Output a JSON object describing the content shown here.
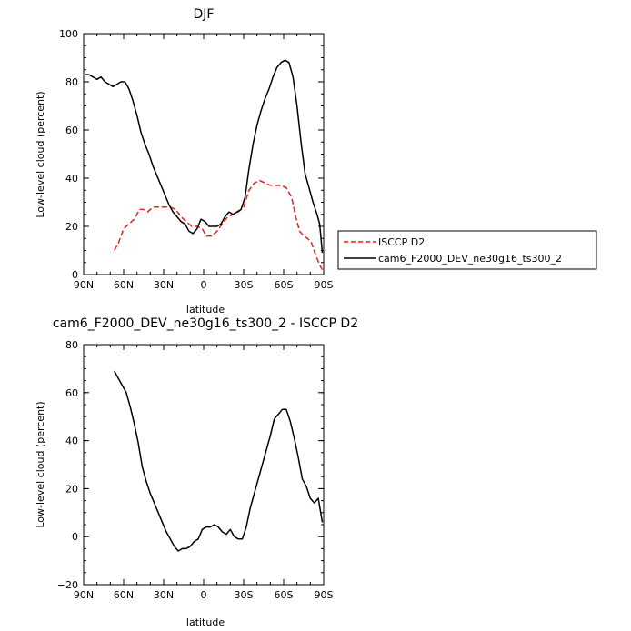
{
  "chart_data": [
    {
      "type": "line",
      "title": "DJF",
      "xlabel": "latitude",
      "ylabel": "Low-level cloud (percent)",
      "xlim": [
        90,
        -90
      ],
      "ylim": [
        0,
        100
      ],
      "xticks": [
        90,
        60,
        30,
        0,
        -30,
        -60,
        -90
      ],
      "xtick_labels": [
        "90N",
        "60N",
        "30N",
        "0",
        "30S",
        "60S",
        "90S"
      ],
      "yticks": [
        0,
        20,
        40,
        60,
        80,
        100
      ],
      "ytick_labels": [
        "0",
        "20",
        "40",
        "60",
        "80",
        "100"
      ],
      "legend_position": "right",
      "series": [
        {
          "name": "ISCCP D2",
          "color": "#e8201c",
          "dashed": true,
          "points": [
            [
              67,
              10
            ],
            [
              64,
              13
            ],
            [
              60,
              19
            ],
            [
              56,
              21
            ],
            [
              52,
              23
            ],
            [
              48,
              27
            ],
            [
              45,
              27
            ],
            [
              42,
              26
            ],
            [
              38,
              28
            ],
            [
              34,
              28
            ],
            [
              29,
              28
            ],
            [
              25,
              28
            ],
            [
              21,
              27
            ],
            [
              17,
              24
            ],
            [
              13,
              22
            ],
            [
              9,
              20
            ],
            [
              5,
              20
            ],
            [
              1,
              19
            ],
            [
              -2,
              16
            ],
            [
              -6,
              16
            ],
            [
              -10,
              18
            ],
            [
              -14,
              21
            ],
            [
              -18,
              24
            ],
            [
              -22,
              25
            ],
            [
              -26,
              26
            ],
            [
              -30,
              28
            ],
            [
              -34,
              35
            ],
            [
              -38,
              38
            ],
            [
              -42,
              39
            ],
            [
              -46,
              38
            ],
            [
              -50,
              37
            ],
            [
              -54,
              37
            ],
            [
              -58,
              37
            ],
            [
              -62,
              36
            ],
            [
              -66,
              32
            ],
            [
              -69,
              24
            ],
            [
              -72,
              18
            ],
            [
              -75,
              16
            ],
            [
              -78,
              15
            ],
            [
              -81,
              13
            ],
            [
              -84,
              8
            ],
            [
              -87,
              4
            ],
            [
              -89,
              2
            ]
          ]
        },
        {
          "name": "cam6_F2000_DEV_ne30g16_ts300_2",
          "color": "#000000",
          "dashed": false,
          "points": [
            [
              89,
              83
            ],
            [
              86,
              83
            ],
            [
              83,
              82
            ],
            [
              80,
              81
            ],
            [
              77,
              82
            ],
            [
              74,
              80
            ],
            [
              71,
              79
            ],
            [
              68,
              78
            ],
            [
              65,
              79
            ],
            [
              62,
              80
            ],
            [
              59,
              80
            ],
            [
              56,
              77
            ],
            [
              53,
              72
            ],
            [
              50,
              66
            ],
            [
              47,
              59
            ],
            [
              44,
              54
            ],
            [
              41,
              50
            ],
            [
              38,
              45
            ],
            [
              35,
              41
            ],
            [
              32,
              37
            ],
            [
              29,
              33
            ],
            [
              26,
              29
            ],
            [
              23,
              26
            ],
            [
              20,
              24
            ],
            [
              17,
              22
            ],
            [
              14,
              21
            ],
            [
              11,
              18
            ],
            [
              8,
              17
            ],
            [
              5,
              19
            ],
            [
              2,
              23
            ],
            [
              -1,
              22
            ],
            [
              -4,
              20
            ],
            [
              -7,
              20
            ],
            [
              -10,
              20
            ],
            [
              -13,
              21
            ],
            [
              -16,
              24
            ],
            [
              -19,
              26
            ],
            [
              -22,
              25
            ],
            [
              -25,
              26
            ],
            [
              -28,
              27
            ],
            [
              -31,
              32
            ],
            [
              -34,
              44
            ],
            [
              -37,
              54
            ],
            [
              -40,
              62
            ],
            [
              -43,
              68
            ],
            [
              -46,
              73
            ],
            [
              -49,
              77
            ],
            [
              -52,
              82
            ],
            [
              -55,
              86
            ],
            [
              -58,
              88
            ],
            [
              -61,
              89
            ],
            [
              -64,
              88
            ],
            [
              -67,
              82
            ],
            [
              -70,
              70
            ],
            [
              -73,
              55
            ],
            [
              -76,
              42
            ],
            [
              -79,
              36
            ],
            [
              -82,
              30
            ],
            [
              -85,
              25
            ],
            [
              -87,
              21
            ],
            [
              -89,
              9
            ]
          ]
        }
      ]
    },
    {
      "type": "line",
      "title": "cam6_F2000_DEV_ne30g16_ts300_2 - ISCCP D2",
      "xlabel": "latitude",
      "ylabel": "Low-level cloud (percent)",
      "xlim": [
        90,
        -90
      ],
      "ylim": [
        -20,
        80
      ],
      "xticks": [
        90,
        60,
        30,
        0,
        -30,
        -60,
        -90
      ],
      "xtick_labels": [
        "90N",
        "60N",
        "30N",
        "0",
        "30S",
        "60S",
        "90S"
      ],
      "yticks": [
        -20,
        0,
        20,
        40,
        60,
        80
      ],
      "ytick_labels": [
        "−20",
        "0",
        "20",
        "40",
        "60",
        "80"
      ],
      "series": [
        {
          "color": "#000000",
          "dashed": false,
          "points": [
            [
              67,
              69
            ],
            [
              64,
              66
            ],
            [
              61,
              63
            ],
            [
              58,
              60
            ],
            [
              55,
              54
            ],
            [
              52,
              47
            ],
            [
              49,
              39
            ],
            [
              46,
              29
            ],
            [
              43,
              23
            ],
            [
              40,
              18
            ],
            [
              37,
              14
            ],
            [
              34,
              10
            ],
            [
              31,
              6
            ],
            [
              28,
              2
            ],
            [
              25,
              -1
            ],
            [
              22,
              -4
            ],
            [
              19,
              -6
            ],
            [
              16,
              -5
            ],
            [
              13,
              -5
            ],
            [
              10,
              -4
            ],
            [
              7,
              -2
            ],
            [
              4,
              -1
            ],
            [
              1,
              3
            ],
            [
              -2,
              4
            ],
            [
              -5,
              4
            ],
            [
              -8,
              5
            ],
            [
              -11,
              4
            ],
            [
              -14,
              2
            ],
            [
              -17,
              1
            ],
            [
              -20,
              3
            ],
            [
              -23,
              0
            ],
            [
              -26,
              -1
            ],
            [
              -29,
              -1
            ],
            [
              -32,
              4
            ],
            [
              -35,
              12
            ],
            [
              -38,
              18
            ],
            [
              -41,
              24
            ],
            [
              -44,
              30
            ],
            [
              -47,
              36
            ],
            [
              -50,
              42
            ],
            [
              -53,
              49
            ],
            [
              -56,
              51
            ],
            [
              -59,
              53
            ],
            [
              -62,
              53
            ],
            [
              -65,
              48
            ],
            [
              -68,
              41
            ],
            [
              -71,
              33
            ],
            [
              -74,
              24
            ],
            [
              -77,
              21
            ],
            [
              -80,
              16
            ],
            [
              -83,
              14
            ],
            [
              -86,
              16
            ],
            [
              -89,
              6
            ]
          ]
        }
      ]
    }
  ]
}
